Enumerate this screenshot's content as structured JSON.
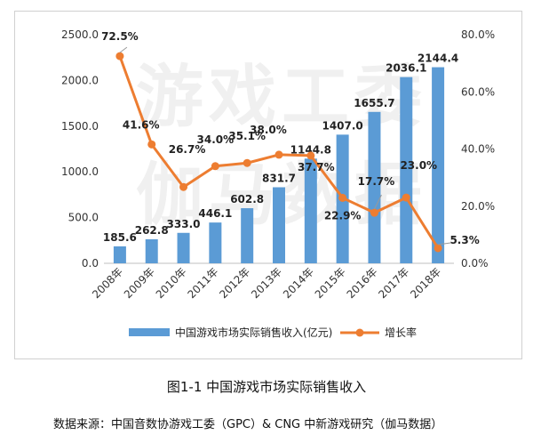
{
  "chart_data": {
    "type": "bar+line",
    "categories": [
      "2008年",
      "2009年",
      "2010年",
      "2011年",
      "2012年",
      "2013年",
      "2014年",
      "2015年",
      "2016年",
      "2017年",
      "2018年"
    ],
    "series": [
      {
        "name": "中国游戏市场实际销售收入(亿元)",
        "type": "bar",
        "axis": "left",
        "values": [
          185.6,
          262.8,
          333.0,
          446.1,
          602.8,
          831.7,
          1144.8,
          1407.0,
          1655.7,
          2036.1,
          2144.4
        ],
        "labels": [
          "185.6",
          "262.8",
          "333.0",
          "446.1",
          "602.8",
          "831.7",
          "1144.8",
          "1407.0",
          "1655.7",
          "2036.1",
          "2144.4"
        ],
        "color": "#5b9bd5"
      },
      {
        "name": "增长率",
        "type": "line",
        "axis": "right",
        "values": [
          72.5,
          41.6,
          26.7,
          34.0,
          35.1,
          38.0,
          37.7,
          22.9,
          17.7,
          23.0,
          5.3
        ],
        "labels": [
          "72.5%",
          "41.6%",
          "26.7%",
          "34.0%",
          "35.1%",
          "38.0%",
          "37.7%",
          "22.9%",
          "17.7%",
          "23.0%",
          "5.3%"
        ],
        "color": "#ed7d31"
      }
    ],
    "y_left": {
      "min": 0,
      "max": 2500,
      "ticks": [
        "0.0",
        "500.0",
        "1000.0",
        "1500.0",
        "2000.0",
        "2500.0"
      ]
    },
    "y_right": {
      "min": 0,
      "max": 80,
      "ticks": [
        "0.0%",
        "20.0%",
        "40.0%",
        "60.0%",
        "80.0%"
      ]
    },
    "legend_position": "bottom",
    "grid": false,
    "watermark": "游戏工委 伽马数据"
  },
  "caption": "图1-1  中国游戏市场实际销售收入",
  "source": "数据来源：中国音数协游戏工委（GPC）& CNG 中新游戏研究（伽马数据）"
}
